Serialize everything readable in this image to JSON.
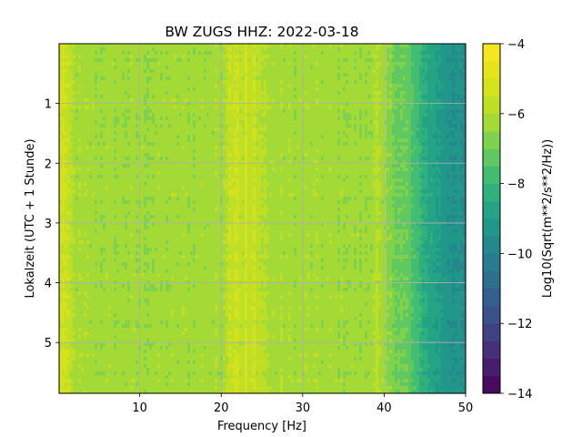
{
  "chart_data": {
    "type": "heatmap",
    "title": "BW ZUGS  HHZ: 2022-03-18",
    "xlabel": "Frequency [Hz]",
    "ylabel": "Lokalzeit (UTC + 1 Stunde)",
    "colorbar_label": "Log10(Sqrt(m**2/s**2/Hz))",
    "xlim": [
      0.1,
      50
    ],
    "ylim": [
      5.85,
      0
    ],
    "y_inverted": true,
    "x_ticks": [
      10,
      20,
      30,
      40,
      50
    ],
    "x_tick_labels": [
      "10",
      "20",
      "30",
      "40",
      "50"
    ],
    "y_ticks": [
      1,
      2,
      3,
      4,
      5
    ],
    "y_tick_labels": [
      "1",
      "2",
      "3",
      "4",
      "5"
    ],
    "colorbar": {
      "vmin": -14,
      "vmax": -4,
      "levels": 20,
      "ticks": [
        -14,
        -12,
        -10,
        -8,
        -6,
        -4
      ],
      "tick_labels": [
        "−14",
        "−12",
        "−10",
        "−8",
        "−6",
        "−4"
      ],
      "colormap": "viridis"
    },
    "grid": true,
    "frequency_profile": {
      "frequency_hz": [
        0.1,
        0.5,
        1,
        2,
        5,
        10,
        15,
        20,
        21,
        22,
        22.5,
        23,
        23.5,
        24,
        24.5,
        25,
        26,
        30,
        35,
        38,
        39,
        40,
        41,
        42,
        43,
        44,
        45,
        46,
        47,
        48,
        49,
        50
      ],
      "log10_asd": [
        -5.7,
        -5.2,
        -5.6,
        -6.2,
        -6.3,
        -6.35,
        -6.3,
        -6.25,
        -5.6,
        -5.3,
        -6.0,
        -5.4,
        -5.9,
        -5.5,
        -6.0,
        -5.8,
        -6.2,
        -6.25,
        -6.3,
        -6.4,
        -5.9,
        -6.5,
        -6.8,
        -7.0,
        -7.2,
        -7.9,
        -8.4,
        -8.8,
        -9.1,
        -9.3,
        -9.5,
        -9.6
      ]
    },
    "time_range_hours": [
      0,
      5.85
    ]
  }
}
